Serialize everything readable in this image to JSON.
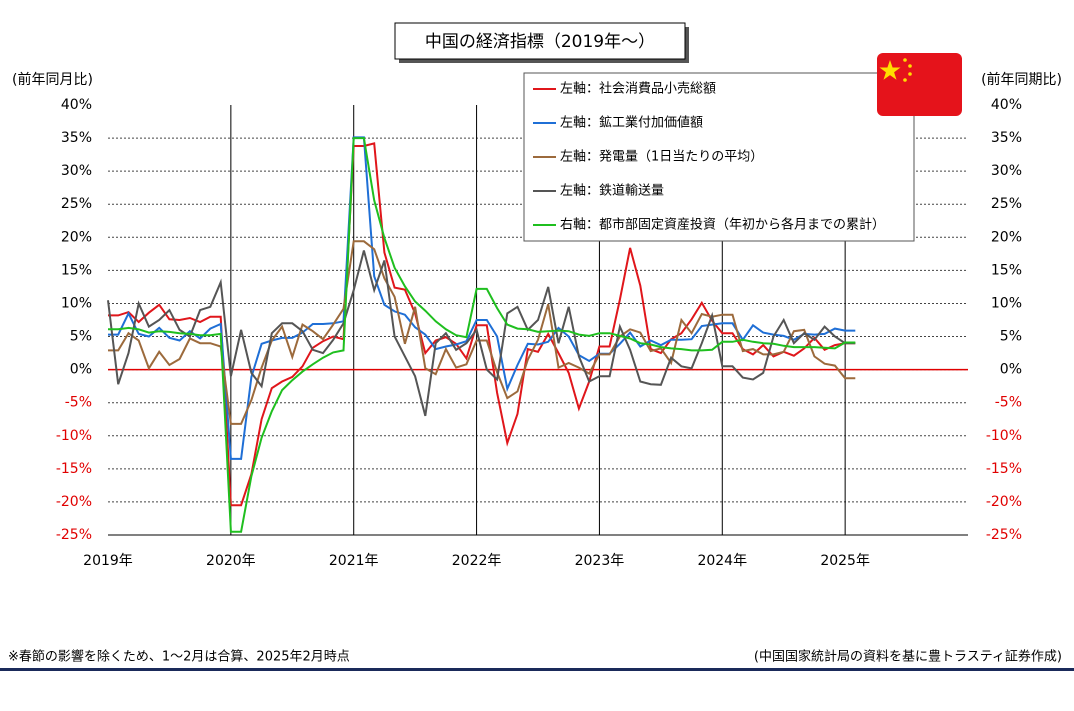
{
  "chart_data": {
    "type": "line",
    "title": "中国の経済指標（2019年～）",
    "y_label": "(前年同月比)",
    "y2_label": "(前年同期比)",
    "note": "※春節の影響を除くため、1～2月は合算、2025年2月時点",
    "source": "(中国国家統計局の資料を基に豊トラスティ証券作成)",
    "xlim": [
      2019,
      2026
    ],
    "xticks": [
      {
        "value": 2019,
        "label": "2019年"
      },
      {
        "value": 2020,
        "label": "2020年"
      },
      {
        "value": 2021,
        "label": "2021年"
      },
      {
        "value": 2022,
        "label": "2022年"
      },
      {
        "value": 2023,
        "label": "2023年"
      },
      {
        "value": 2024,
        "label": "2024年"
      },
      {
        "value": 2025,
        "label": "2025年"
      }
    ],
    "ylim": [
      -25,
      40
    ],
    "yticks": [
      {
        "value": 40,
        "label": "40%"
      },
      {
        "value": 35,
        "label": "35%"
      },
      {
        "value": 30,
        "label": "30%"
      },
      {
        "value": 25,
        "label": "25%"
      },
      {
        "value": 20,
        "label": "20%"
      },
      {
        "value": 15,
        "label": "15%"
      },
      {
        "value": 10,
        "label": "10%"
      },
      {
        "value": 5,
        "label": "5%"
      },
      {
        "value": 0,
        "label": "0%"
      },
      {
        "value": -5,
        "label": "-5%"
      },
      {
        "value": -10,
        "label": "-10%"
      },
      {
        "value": -15,
        "label": "-15%"
      },
      {
        "value": -20,
        "label": "-20%"
      },
      {
        "value": -25,
        "label": "-25%"
      }
    ],
    "y2lim": [
      -25,
      40
    ],
    "y2ticks": [
      {
        "value": 40,
        "label": "40%"
      },
      {
        "value": 35,
        "label": "35%"
      },
      {
        "value": 30,
        "label": "30%"
      },
      {
        "value": 25,
        "label": "25%"
      },
      {
        "value": 20,
        "label": "20%"
      },
      {
        "value": 15,
        "label": "15%"
      },
      {
        "value": 10,
        "label": "10%"
      },
      {
        "value": 5,
        "label": "5%"
      },
      {
        "value": 0,
        "label": "0%"
      },
      {
        "value": -5,
        "label": "-5%"
      },
      {
        "value": -10,
        "label": "-10%"
      },
      {
        "value": -15,
        "label": "-15%"
      },
      {
        "value": -20,
        "label": "-20%"
      },
      {
        "value": -25,
        "label": "-25%"
      }
    ],
    "grid": true,
    "x": [
      2019,
      2019.083,
      2019.167,
      2019.25,
      2019.333,
      2019.417,
      2019.5,
      2019.583,
      2019.667,
      2019.75,
      2019.833,
      2019.917,
      2020,
      2020.083,
      2020.167,
      2020.25,
      2020.333,
      2020.417,
      2020.5,
      2020.583,
      2020.667,
      2020.75,
      2020.833,
      2020.917,
      2021,
      2021.083,
      2021.167,
      2021.25,
      2021.333,
      2021.417,
      2021.5,
      2021.583,
      2021.667,
      2021.75,
      2021.833,
      2021.917,
      2022,
      2022.083,
      2022.167,
      2022.25,
      2022.333,
      2022.417,
      2022.5,
      2022.583,
      2022.667,
      2022.75,
      2022.833,
      2022.917,
      2023,
      2023.083,
      2023.167,
      2023.25,
      2023.333,
      2023.417,
      2023.5,
      2023.583,
      2023.667,
      2023.75,
      2023.833,
      2023.917,
      2024,
      2024.083,
      2024.167,
      2024.25,
      2024.333,
      2024.417,
      2024.5,
      2024.583,
      2024.667,
      2024.75,
      2024.833,
      2024.917,
      2025,
      2025.083
    ],
    "series": [
      {
        "name": "左軸：社会消費品小売総額",
        "color": "#e0161b",
        "values": [
          8.2,
          8.2,
          8.7,
          7.2,
          8.6,
          9.8,
          7.6,
          7.5,
          7.8,
          7.2,
          8.0,
          8.0,
          -20.5,
          -20.5,
          -15.8,
          -7.5,
          -2.8,
          -1.8,
          -1.1,
          0.5,
          3.3,
          4.3,
          5.0,
          4.6,
          33.8,
          33.8,
          34.2,
          17.7,
          12.4,
          12.1,
          8.5,
          2.5,
          4.4,
          4.9,
          3.9,
          1.7,
          6.7,
          6.7,
          -3.5,
          -11.1,
          -6.7,
          3.1,
          2.7,
          5.4,
          2.5,
          -0.5,
          -5.9,
          -1.8,
          3.5,
          3.5,
          10.6,
          18.4,
          12.7,
          3.1,
          2.5,
          4.6,
          5.5,
          7.6,
          10.1,
          7.4,
          5.5,
          5.5,
          3.1,
          2.3,
          3.7,
          2.0,
          2.7,
          2.1,
          3.2,
          4.8,
          3.0,
          3.7,
          4.0,
          4.0
        ]
      },
      {
        "name": "左軸：鉱工業付加価値額",
        "color": "#1f6fd6",
        "values": [
          5.3,
          5.3,
          8.5,
          5.4,
          5.0,
          6.3,
          4.8,
          4.4,
          5.8,
          4.7,
          6.2,
          6.9,
          -13.5,
          -13.5,
          -1.1,
          3.9,
          4.4,
          4.8,
          4.8,
          5.6,
          6.9,
          6.9,
          7.0,
          7.3,
          35.1,
          35.1,
          14.1,
          9.8,
          8.8,
          8.3,
          6.4,
          5.3,
          3.1,
          3.5,
          3.8,
          4.3,
          7.5,
          7.5,
          5.0,
          -2.9,
          0.7,
          3.9,
          3.8,
          4.2,
          6.3,
          5.0,
          2.2,
          1.3,
          2.4,
          2.4,
          3.9,
          5.6,
          3.5,
          4.4,
          3.7,
          4.5,
          4.5,
          4.6,
          6.6,
          6.8,
          7.0,
          7.0,
          4.5,
          6.7,
          5.6,
          5.3,
          5.1,
          4.5,
          5.4,
          5.3,
          5.4,
          6.2,
          5.9,
          5.9
        ]
      },
      {
        "name": "左軸：発電量（1日当たりの平均）",
        "color": "#9c6a3c",
        "values": [
          2.9,
          2.9,
          5.5,
          4.4,
          0.2,
          2.7,
          0.7,
          1.6,
          4.7,
          4.0,
          4.0,
          3.5,
          -8.2,
          -8.2,
          -4.6,
          0.3,
          4.4,
          6.5,
          1.9,
          6.8,
          5.8,
          4.6,
          6.8,
          9.2,
          19.4,
          19.4,
          18.2,
          13.8,
          11.0,
          3.9,
          9.5,
          0.2,
          -0.7,
          3.1,
          0.3,
          0.8,
          4.4,
          4.4,
          -0.4,
          -4.3,
          -3.3,
          1.5,
          4.5,
          9.9,
          0.3,
          1.0,
          0.3,
          -0.6,
          2.3,
          2.3,
          5.0,
          6.1,
          5.6,
          2.8,
          3.2,
          1.0,
          7.5,
          5.5,
          8.4,
          8.0,
          8.3,
          8.3,
          2.8,
          3.1,
          2.3,
          2.3,
          2.7,
          5.8,
          6.0,
          2.0,
          0.9,
          0.6,
          -1.3,
          -1.3
        ]
      },
      {
        "name": "左軸：鉄道輸送量",
        "color": "#555555",
        "values": [
          10.5,
          -2.2,
          2.5,
          10.0,
          6.5,
          7.5,
          9.0,
          6.0,
          5.0,
          9.0,
          9.5,
          13.2,
          -1.0,
          6.0,
          -0.5,
          -2.5,
          5.5,
          7.0,
          7.0,
          5.8,
          3.0,
          2.5,
          4.5,
          7.0,
          12.0,
          18.0,
          12.0,
          16.5,
          5.0,
          2.0,
          -1.0,
          -7.0,
          4.0,
          5.5,
          3.0,
          4.0,
          6.0,
          0.0,
          -1.5,
          8.5,
          9.5,
          6.0,
          7.5,
          12.5,
          4.0,
          9.5,
          2.0,
          -1.8,
          -1.0,
          -1.0,
          6.5,
          3.0,
          -1.8,
          -2.2,
          -2.3,
          1.8,
          0.5,
          0.2,
          4.0,
          8.2,
          0.5,
          0.5,
          -1.2,
          -1.5,
          -0.5,
          5.0,
          7.5,
          4.0,
          5.5,
          4.5,
          6.5,
          5.0,
          4.0,
          4.0
        ]
      },
      {
        "name": "右軸：都市部固定資産投資（年初から各月までの累計）",
        "color": "#1fbf1f",
        "axis": "y2",
        "values": [
          6.1,
          6.1,
          6.3,
          6.1,
          5.6,
          5.8,
          5.7,
          5.5,
          5.4,
          5.2,
          5.2,
          5.4,
          -24.5,
          -24.5,
          -16.1,
          -10.3,
          -6.3,
          -3.1,
          -1.6,
          -0.3,
          0.8,
          1.8,
          2.6,
          2.9,
          35.0,
          35.0,
          25.6,
          19.9,
          15.4,
          12.6,
          10.3,
          8.9,
          7.3,
          6.1,
          5.2,
          4.9,
          12.2,
          12.2,
          9.3,
          6.8,
          6.2,
          6.1,
          5.7,
          5.8,
          5.9,
          5.8,
          5.3,
          5.1,
          5.5,
          5.5,
          5.1,
          4.7,
          4.0,
          3.8,
          3.4,
          3.2,
          3.1,
          2.9,
          2.9,
          3.0,
          4.2,
          4.2,
          4.5,
          4.2,
          4.0,
          3.9,
          3.6,
          3.4,
          3.4,
          3.4,
          3.3,
          3.2,
          4.1,
          4.1
        ]
      }
    ]
  }
}
